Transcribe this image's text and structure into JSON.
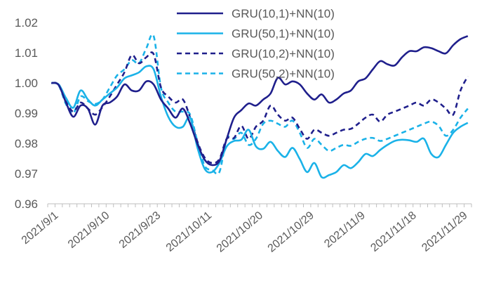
{
  "chart_data": {
    "type": "line",
    "title": "",
    "xlabel": "",
    "ylabel": "",
    "ylim": [
      0.96,
      1.02
    ],
    "yticks": [
      "0.96",
      "0.97",
      "0.98",
      "0.99",
      "1.00",
      "1.01",
      "1.02"
    ],
    "x_tick_labels": [
      "2021/9/1",
      "2021/9/10",
      "2021/9/23",
      "2021/10/11",
      "2021/10/20",
      "2021/10/29",
      "2021/11/9",
      "2021/11/18",
      "2021/11/29"
    ],
    "x_tick_index": [
      0,
      7,
      14,
      21,
      28,
      35,
      42,
      49,
      56
    ],
    "n_points": 58,
    "grid": false,
    "legend_position": "top-center",
    "series": [
      {
        "name": "GRU(10,1)+NN(10)",
        "color": "#1f1f8c",
        "style": "solid",
        "values": [
          1.0,
          0.9993,
          0.9935,
          0.9888,
          0.9925,
          0.9915,
          0.9862,
          0.9925,
          0.9935,
          0.9955,
          0.9995,
          0.9975,
          0.9975,
          1.0005,
          0.9995,
          0.9945,
          0.9915,
          0.9885,
          0.9915,
          0.9865,
          0.9798,
          0.9745,
          0.9728,
          0.9742,
          0.9815,
          0.9885,
          0.991,
          0.9932,
          0.9925,
          0.9945,
          0.9965,
          1.0017,
          0.9995,
          1.0005,
          0.9995,
          0.9965,
          0.9945,
          0.9962,
          0.9935,
          0.9945,
          0.9965,
          0.9975,
          1.0005,
          1.0015,
          1.0045,
          1.0072,
          1.0062,
          1.0058,
          1.0085,
          1.0105,
          1.0105,
          1.0118,
          1.0115,
          1.0105,
          1.0098,
          1.0125,
          1.0145,
          1.0155
        ]
      },
      {
        "name": "GRU(50,1)+NN(10)",
        "color": "#1ab2e8",
        "style": "solid",
        "values": [
          1.0,
          0.9995,
          0.995,
          0.9918,
          0.9975,
          0.9945,
          0.9925,
          0.9945,
          0.9965,
          0.9985,
          1.0015,
          1.0025,
          1.0035,
          1.0055,
          1.0045,
          0.9955,
          0.9888,
          0.9855,
          0.9855,
          0.9885,
          0.9785,
          0.9715,
          0.9705,
          0.9735,
          0.979,
          0.9808,
          0.9812,
          0.9845,
          0.979,
          0.9782,
          0.9805,
          0.9775,
          0.9755,
          0.9785,
          0.9748,
          0.9705,
          0.9735,
          0.9688,
          0.9695,
          0.9705,
          0.9728,
          0.9718,
          0.9738,
          0.9765,
          0.9758,
          0.9778,
          0.9795,
          0.9808,
          0.9812,
          0.981,
          0.9805,
          0.9815,
          0.9765,
          0.9755,
          0.9795,
          0.9835,
          0.9855,
          0.9868
        ]
      },
      {
        "name": "GRU(10,2)+NN(10)",
        "color": "#1f1f8c",
        "style": "dashed",
        "values": [
          1.0,
          0.9995,
          0.994,
          0.9905,
          0.9935,
          0.9915,
          0.9895,
          0.992,
          0.9955,
          0.9995,
          1.0035,
          1.0092,
          1.0065,
          1.0085,
          1.0095,
          0.9985,
          0.9955,
          0.9935,
          0.9945,
          0.9885,
          0.9805,
          0.9752,
          0.9735,
          0.9748,
          0.9815,
          0.9818,
          0.9858,
          0.9815,
          0.9855,
          0.9875,
          0.9925,
          0.9895,
          0.9875,
          0.9885,
          0.9848,
          0.9815,
          0.9845,
          0.9835,
          0.9825,
          0.9835,
          0.9845,
          0.9848,
          0.9865,
          0.9885,
          0.9895,
          0.9872,
          0.9895,
          0.9905,
          0.9915,
          0.9925,
          0.9935,
          0.9925,
          0.9945,
          0.9935,
          0.9915,
          0.9895,
          0.9975,
          1.0022
        ]
      },
      {
        "name": "GRU(50,2)+NN(10)",
        "color": "#1ab2e8",
        "style": "dashed",
        "values": [
          1.0,
          0.9992,
          0.993,
          0.99,
          0.9955,
          0.994,
          0.993,
          0.9945,
          0.9985,
          1.0025,
          1.0045,
          1.0075,
          1.0065,
          1.0115,
          1.0155,
          0.9985,
          0.9935,
          0.9905,
          0.9905,
          0.9895,
          0.9805,
          0.9725,
          0.9712,
          0.9705,
          0.9815,
          0.9815,
          0.9835,
          0.9795,
          0.9815,
          0.9865,
          0.9875,
          0.9865,
          0.9855,
          0.9875,
          0.9835,
          0.9785,
          0.9815,
          0.9795,
          0.9775,
          0.9785,
          0.9795,
          0.9792,
          0.9805,
          0.9815,
          0.9818,
          0.9808,
          0.9815,
          0.9825,
          0.9835,
          0.9845,
          0.9855,
          0.9865,
          0.9872,
          0.9858,
          0.9825,
          0.9845,
          0.9885,
          0.9915
        ]
      }
    ]
  }
}
